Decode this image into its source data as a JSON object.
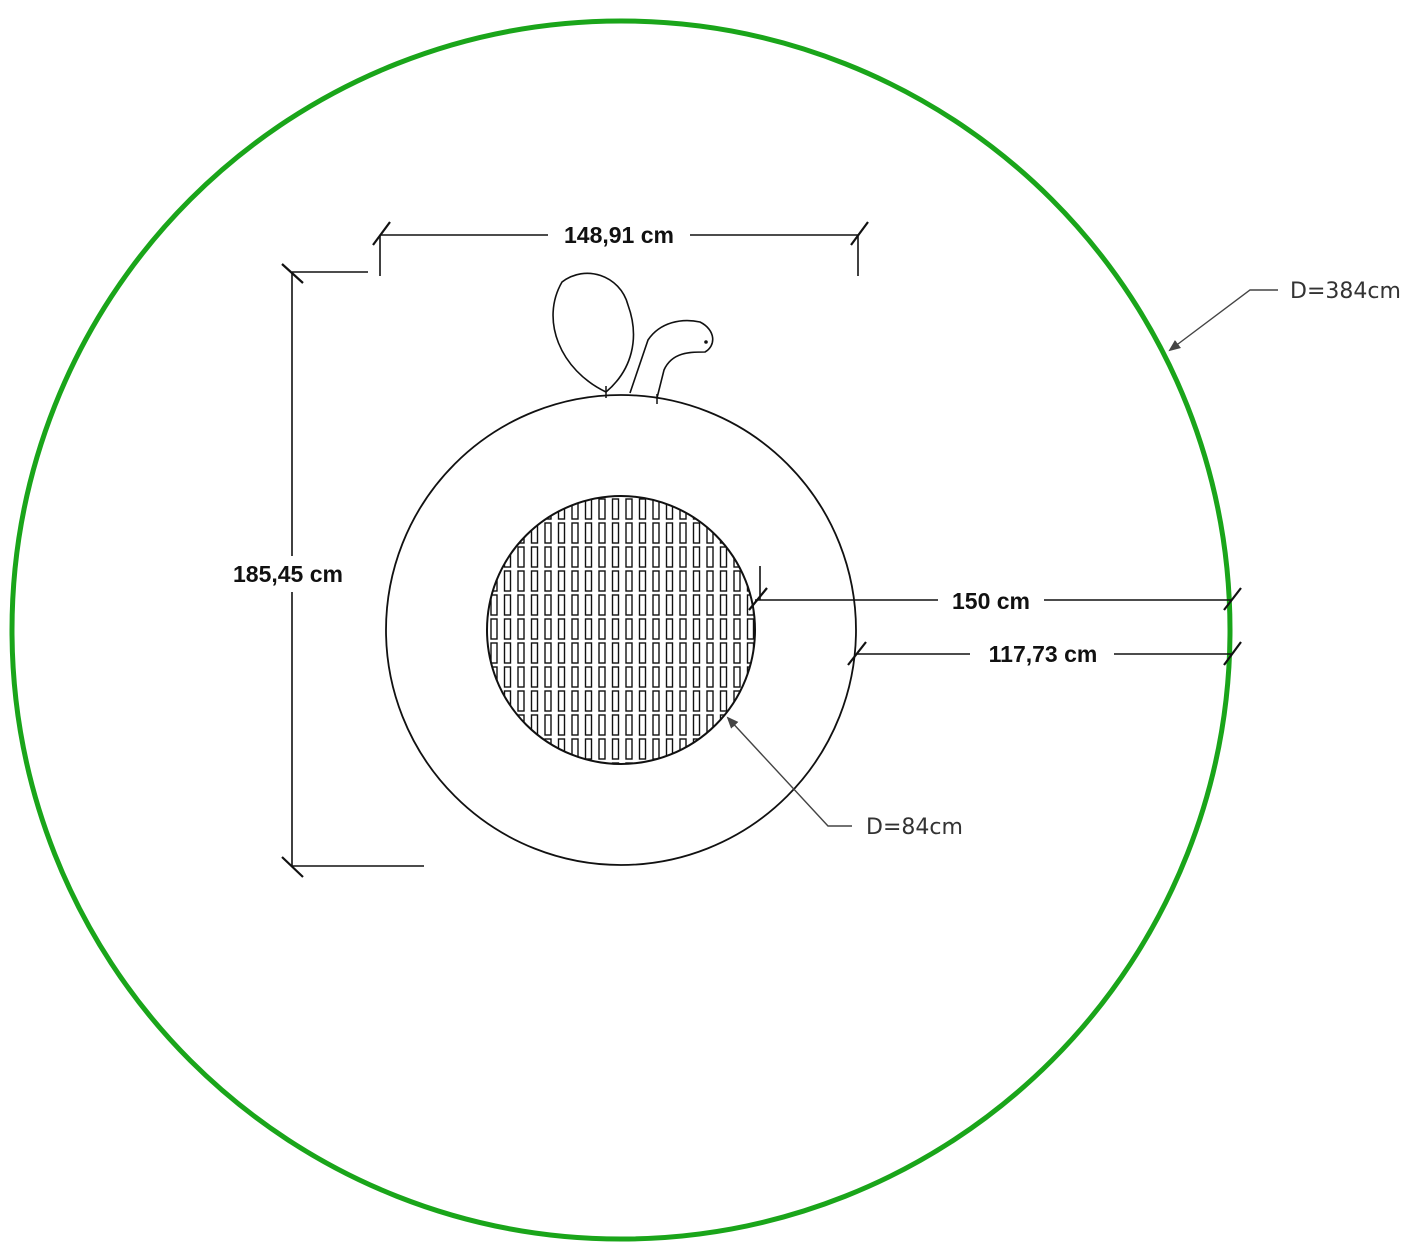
{
  "colors": {
    "outer_circle": "#1aa51a",
    "line": "#111111",
    "leader": "#444444",
    "background": "#ffffff"
  },
  "dimensions": {
    "top_width": "148,91 cm",
    "left_height": "185,45 cm",
    "right_upper": "150 cm",
    "right_lower": "117,73 cm"
  },
  "notes": {
    "outer_diameter": "D=384cm",
    "inner_diameter": "D=84cm"
  }
}
